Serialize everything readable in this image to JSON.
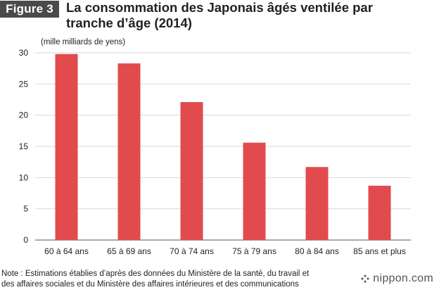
{
  "header": {
    "figure_label": "Figure 3",
    "title_line1": "La consommation des Japonais âgés ventilée par",
    "title_line2": "tranche d’âge (2014)"
  },
  "footer": {
    "note_line1": "Note : Estimations établies d’après des données du Ministère de la santé, du travail et",
    "note_line2": "des affaires sociales et du Ministère des affaires intérieures et des communications",
    "brand_text": "nippon.com",
    "brand_icon": "nippon-logo-icon"
  },
  "colors": {
    "bar": "#e14b4e",
    "grid": "#d9d9d9",
    "axis": "#555555",
    "badge_bg": "#4a4a4a"
  },
  "chart_data": {
    "type": "bar",
    "unit_label": "(mille milliards de yens)",
    "categories": [
      "60 à 64 ans",
      "65 à 69 ans",
      "70 à 74 ans",
      "75 à 79 ans",
      "80 à 84 ans",
      "85 ans et plus"
    ],
    "values": [
      29.8,
      28.3,
      22.1,
      15.6,
      11.7,
      8.7
    ],
    "ylim": [
      0,
      30
    ],
    "yticks": [
      0,
      5,
      10,
      15,
      20,
      25,
      30
    ],
    "grid": true,
    "legend": "none"
  }
}
